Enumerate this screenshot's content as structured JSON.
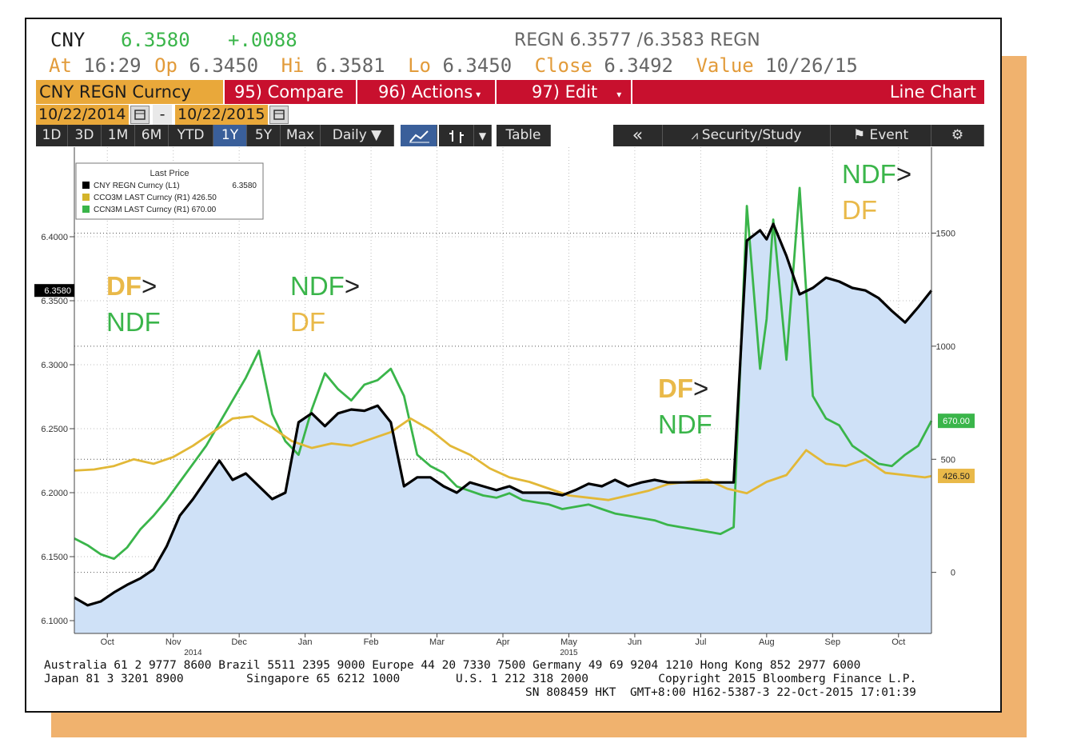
{
  "header": {
    "ticker": "CNY",
    "last": "6.3580",
    "change": "+.0088",
    "bid_ask": "REGN 6.3577 /6.3583 REGN",
    "at_label": "At",
    "at_value": "16:29",
    "op_label": "Op",
    "op_value": "6.3450",
    "hi_label": "Hi",
    "hi_value": "6.3581",
    "lo_label": "Lo",
    "lo_value": "6.3450",
    "close_label": "Close",
    "close_value": "6.3492",
    "value_label": "Value",
    "value_value": "10/26/15"
  },
  "toolbar": {
    "security": "CNY REGN Curncy",
    "compare": "95) Compare",
    "actions": "96) Actions",
    "edit": "97) Edit",
    "chart_type": "Line Chart",
    "date_from": "10/22/2014",
    "date_sep": "-",
    "date_to": "10/22/2015",
    "periods": [
      "1D",
      "3D",
      "1M",
      "6M",
      "YTD",
      "1Y",
      "5Y",
      "Max"
    ],
    "active_period": "1Y",
    "frequency": "Daily ▼",
    "table": "Table",
    "collapse": "«",
    "security_study": "Security/Study",
    "event": "Event"
  },
  "chart_data": {
    "type": "line",
    "legend": {
      "title": "Last Price",
      "placement": "top-left",
      "entries": [
        {
          "name": "CNY REGN Curncy  (L1)",
          "value": "6.3580",
          "color": "#000000"
        },
        {
          "name": "CCO3M LAST Curncy  (R1) 426.50",
          "value": "",
          "color": "#d4b42a"
        },
        {
          "name": "CCN3M LAST Curncy  (R1) 670.00",
          "value": "",
          "color": "#3ab54a"
        }
      ]
    },
    "y_left": {
      "range": [
        6.09,
        6.47
      ],
      "ticks": [
        "6.1000",
        "6.1500",
        "6.2000",
        "6.2500",
        "6.3000",
        "6.3500",
        "6.4000"
      ],
      "tick_values": [
        6.1,
        6.15,
        6.2,
        6.25,
        6.3,
        6.35,
        6.4
      ],
      "last_label": "6.3580",
      "last_value": 6.358
    },
    "y_right": {
      "range": [
        -270,
        1880
      ],
      "ticks": [
        "0",
        "500",
        "1000",
        "1500"
      ],
      "tick_values": [
        0,
        500,
        1000,
        1500
      ],
      "last_labels": [
        {
          "text": "670.00",
          "value": 670,
          "color": "#3ab54a"
        },
        {
          "text": "426.50",
          "value": 426.5,
          "color": "#e9b949"
        }
      ]
    },
    "x_months": [
      "Oct",
      "Nov",
      "Dec",
      "Jan",
      "Feb",
      "Mar",
      "Apr",
      "May",
      "Jun",
      "Jul",
      "Aug",
      "Sep",
      "Oct"
    ],
    "x_month_pos": [
      0.5,
      1.5,
      2.5,
      3.5,
      4.5,
      5.5,
      6.5,
      7.5,
      8.5,
      9.5,
      10.5,
      11.5,
      12.5
    ],
    "x_years": [
      {
        "text": "2014",
        "pos": 1.8
      },
      {
        "text": "2015",
        "pos": 7.5
      }
    ],
    "x_range": [
      0,
      13
    ],
    "series": [
      {
        "name": "CNY REGN Curncy",
        "axis": "left",
        "color": "#000000",
        "fill": "#cfe1f7",
        "x": [
          0.0,
          0.2,
          0.4,
          0.6,
          0.8,
          1.0,
          1.2,
          1.4,
          1.6,
          1.8,
          2.0,
          2.2,
          2.4,
          2.6,
          2.8,
          3.0,
          3.2,
          3.4,
          3.6,
          3.8,
          4.0,
          4.2,
          4.4,
          4.6,
          4.8,
          5.0,
          5.2,
          5.4,
          5.6,
          5.8,
          6.0,
          6.2,
          6.4,
          6.6,
          6.8,
          7.0,
          7.2,
          7.4,
          7.6,
          7.8,
          8.0,
          8.2,
          8.4,
          8.6,
          8.8,
          9.0,
          9.2,
          9.4,
          9.6,
          9.8,
          10.0,
          10.2,
          10.4,
          10.5,
          10.6,
          10.8,
          11.0,
          11.2,
          11.4,
          11.6,
          11.8,
          12.0,
          12.2,
          12.4,
          12.6,
          12.8,
          13.0
        ],
        "y": [
          6.118,
          6.112,
          6.115,
          6.122,
          6.128,
          6.133,
          6.14,
          6.158,
          6.182,
          6.195,
          6.21,
          6.225,
          6.21,
          6.215,
          6.205,
          6.195,
          6.2,
          6.255,
          6.262,
          6.252,
          6.262,
          6.265,
          6.264,
          6.268,
          6.255,
          6.205,
          6.212,
          6.212,
          6.205,
          6.2,
          6.208,
          6.205,
          6.202,
          6.205,
          6.2,
          6.2,
          6.2,
          6.198,
          6.202,
          6.207,
          6.205,
          6.21,
          6.205,
          6.208,
          6.21,
          6.208,
          6.208,
          6.208,
          6.208,
          6.208,
          6.208,
          6.397,
          6.405,
          6.398,
          6.41,
          6.385,
          6.355,
          6.36,
          6.368,
          6.365,
          6.36,
          6.358,
          6.352,
          6.342,
          6.333,
          6.345,
          6.358
        ]
      },
      {
        "name": "CCO3M LAST Curncy",
        "axis": "right",
        "color": "#e2b837",
        "x": [
          0.0,
          0.3,
          0.6,
          0.9,
          1.2,
          1.5,
          1.8,
          2.1,
          2.4,
          2.7,
          3.0,
          3.3,
          3.6,
          3.9,
          4.2,
          4.5,
          4.8,
          5.1,
          5.4,
          5.7,
          6.0,
          6.3,
          6.6,
          6.9,
          7.2,
          7.5,
          7.8,
          8.1,
          8.4,
          8.7,
          9.0,
          9.3,
          9.6,
          9.9,
          10.2,
          10.5,
          10.8,
          11.1,
          11.4,
          11.7,
          12.0,
          12.3,
          12.6,
          12.9,
          13.0
        ],
        "y": [
          450,
          455,
          470,
          500,
          480,
          510,
          560,
          620,
          680,
          690,
          640,
          580,
          550,
          570,
          560,
          590,
          620,
          680,
          630,
          560,
          520,
          460,
          420,
          400,
          370,
          340,
          330,
          320,
          340,
          360,
          390,
          400,
          410,
          370,
          350,
          400,
          430,
          540,
          480,
          470,
          500,
          440,
          430,
          420,
          426
        ]
      },
      {
        "name": "CCN3M LAST Curncy",
        "axis": "right",
        "color": "#3ab54a",
        "x": [
          0.0,
          0.2,
          0.4,
          0.6,
          0.8,
          1.0,
          1.2,
          1.4,
          1.6,
          1.8,
          2.0,
          2.2,
          2.4,
          2.6,
          2.8,
          3.0,
          3.2,
          3.4,
          3.6,
          3.8,
          4.0,
          4.2,
          4.4,
          4.6,
          4.8,
          5.0,
          5.2,
          5.4,
          5.6,
          5.8,
          6.0,
          6.2,
          6.4,
          6.6,
          6.8,
          7.0,
          7.2,
          7.4,
          7.6,
          7.8,
          8.0,
          8.2,
          8.4,
          8.6,
          8.8,
          9.0,
          9.2,
          9.4,
          9.6,
          9.8,
          10.0,
          10.2,
          10.4,
          10.5,
          10.6,
          10.8,
          11.0,
          11.2,
          11.4,
          11.6,
          11.8,
          12.0,
          12.2,
          12.4,
          12.6,
          12.8,
          13.0
        ],
        "y": [
          150,
          120,
          80,
          60,
          110,
          190,
          250,
          320,
          400,
          480,
          560,
          660,
          760,
          860,
          980,
          700,
          580,
          520,
          720,
          880,
          810,
          760,
          830,
          850,
          900,
          780,
          520,
          470,
          440,
          380,
          360,
          340,
          330,
          350,
          320,
          310,
          300,
          280,
          290,
          300,
          280,
          260,
          250,
          240,
          230,
          210,
          200,
          190,
          180,
          170,
          200,
          1620,
          900,
          1120,
          1560,
          940,
          1700,
          780,
          680,
          650,
          560,
          520,
          480,
          470,
          520,
          560,
          670
        ]
      }
    ],
    "annotations": [
      {
        "line1": "DF>",
        "line2": "NDF",
        "line1_color": "#e9b949",
        "line2_color": "#3ab54a",
        "bold_part": "DF",
        "x": 0.35,
        "y": 0.27
      },
      {
        "line1": "NDF>",
        "line2": "DF",
        "line1_color": "#3ab54a",
        "line2_color": "#e9b949",
        "bold_part": "",
        "x": 0.3,
        "y": 0.27
      },
      {
        "line1": "DF>",
        "line2": "NDF",
        "line1_color": "#e9b949",
        "line2_color": "#3ab54a",
        "bold_part": "DF",
        "x": 0.7,
        "y": 0.62
      },
      {
        "line1": "NDF>",
        "line2": "DF",
        "line1_color": "#3ab54a",
        "line2_color": "#e9b949",
        "bold_part": "",
        "x": 0.88,
        "y": 0.05
      }
    ]
  },
  "footer": {
    "line1": "Australia 61 2 9777 8600 Brazil 5511 2395 9000 Europe 44 20 7330 7500 Germany 49 69 9204 1210 Hong Kong 852 2977 6000",
    "line2": "Japan 81 3 3201 8900         Singapore 65 6212 1000        U.S. 1 212 318 2000          Copyright 2015 Bloomberg Finance L.P.",
    "line3": "SN 808459 HKT  GMT+8:00 H162-5387-3 22-Oct-2015 17:01:39"
  }
}
